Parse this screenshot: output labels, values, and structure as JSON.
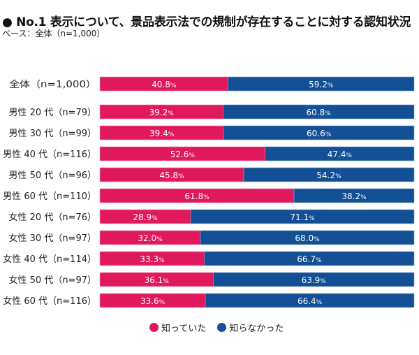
{
  "header": {
    "title": "● No.1 表示について、景品表示法での規制が存在することに対する認知状況",
    "subtitle": "ベース：全体（n=1,000）"
  },
  "colors": {
    "knew": "#e0195f",
    "did_not_know": "#124f94"
  },
  "legend": [
    {
      "label": "知っていた",
      "color": "#e0195f"
    },
    {
      "label": "知らなかった",
      "color": "#124f94"
    }
  ],
  "chart_data": {
    "type": "bar",
    "orientation": "horizontal-stacked-100",
    "title": "No.1 表示について、景品表示法での規制が存在することに対する認知状況",
    "subtitle": "ベース：全体（n=1,000）",
    "unit": "%",
    "categories": [
      "全体（n=1,000）",
      "男性 20 代（n=79）",
      "男性 30 代（n=99）",
      "男性 40 代（n=116）",
      "男性 50 代（n=96）",
      "男性 60 代（n=110）",
      "女性 20 代（n=76）",
      "女性 30 代（n=97）",
      "女性 40 代（n=114）",
      "女性 50 代（n=97）",
      "女性 60 代（n=116）"
    ],
    "series": [
      {
        "name": "知っていた",
        "color": "#e0195f",
        "values": [
          40.8,
          39.2,
          39.4,
          52.6,
          45.8,
          61.8,
          28.9,
          32.0,
          33.3,
          36.1,
          33.6
        ]
      },
      {
        "name": "知らなかった",
        "color": "#124f94",
        "values": [
          59.2,
          60.8,
          60.6,
          47.4,
          54.2,
          38.2,
          71.1,
          68.0,
          66.7,
          63.9,
          66.4
        ]
      }
    ],
    "xlim": [
      0,
      100
    ],
    "grid": false,
    "legend_position": "bottom"
  }
}
